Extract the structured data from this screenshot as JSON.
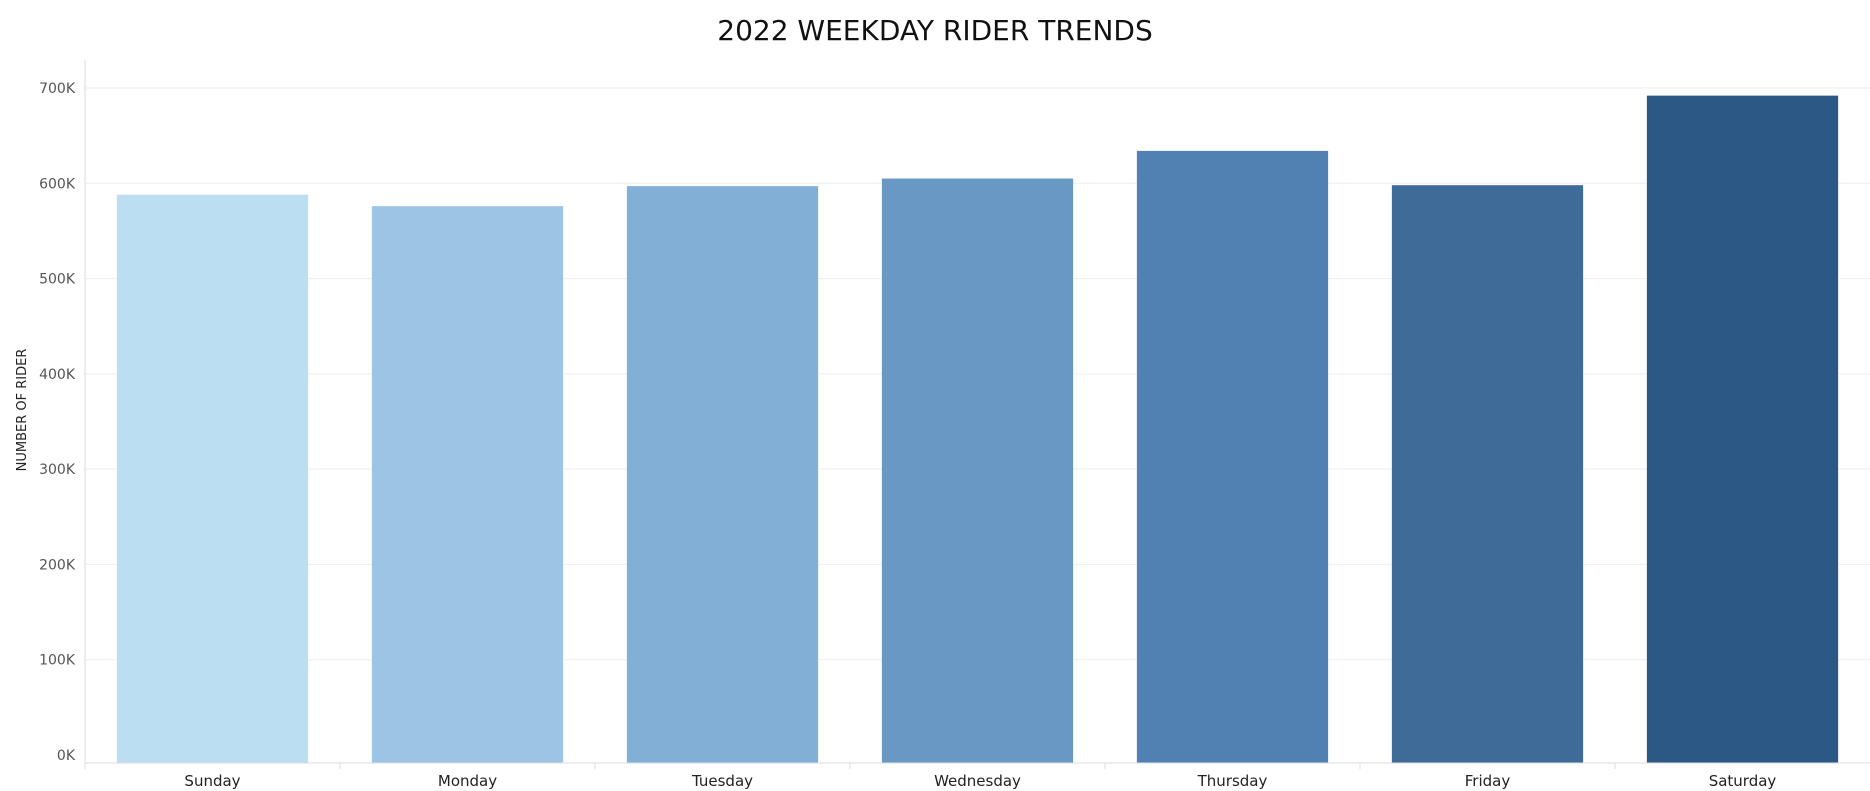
{
  "chart_data": {
    "type": "bar",
    "title": "2022 WEEKDAY RIDER TRENDS",
    "xlabel": "",
    "ylabel": "NUMBER OF RIDER",
    "categories": [
      "Sunday",
      "Monday",
      "Tuesday",
      "Wednesday",
      "Thursday",
      "Friday",
      "Saturday"
    ],
    "values": [
      588000,
      576000,
      597000,
      605000,
      634000,
      598000,
      692000
    ],
    "colors": [
      "#bcdef2",
      "#9cc5e5",
      "#82afd6",
      "#6898c3",
      "#5181b3",
      "#3e6b98",
      "#2c5886"
    ],
    "ylim": [
      0,
      700000
    ],
    "yticks": [
      0,
      100000,
      200000,
      300000,
      400000,
      500000,
      600000,
      700000
    ],
    "ytick_labels": [
      "0K",
      "100K",
      "200K",
      "300K",
      "400K",
      "500K",
      "600K",
      "700K"
    ],
    "grid": true,
    "legend": "none"
  }
}
